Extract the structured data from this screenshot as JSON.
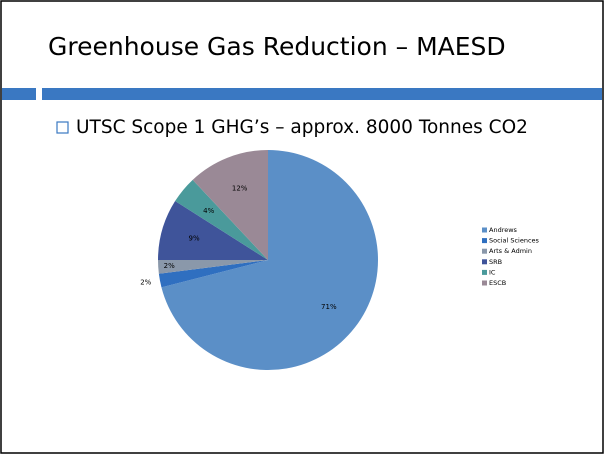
{
  "header": {
    "title": "Greenhouse Gas Reduction – MAESD"
  },
  "bullet": "UTSC Scope 1 GHG’s – approx. 8000 Tonnes CO2",
  "chart_data": {
    "type": "pie",
    "categories": [
      "Andrews",
      "Social Sciences",
      "Arts & Admin",
      "SRB",
      "IC",
      "ESCB"
    ],
    "values": [
      71,
      2,
      2,
      9,
      4,
      12
    ],
    "value_labels": [
      "71%",
      "2%",
      "2%",
      "9%",
      "4%",
      "12%"
    ],
    "colors": [
      "#5b8fc7",
      "#2f6fc0",
      "#8a98aa",
      "#3f549a",
      "#4a9a9b",
      "#9a8996"
    ]
  }
}
